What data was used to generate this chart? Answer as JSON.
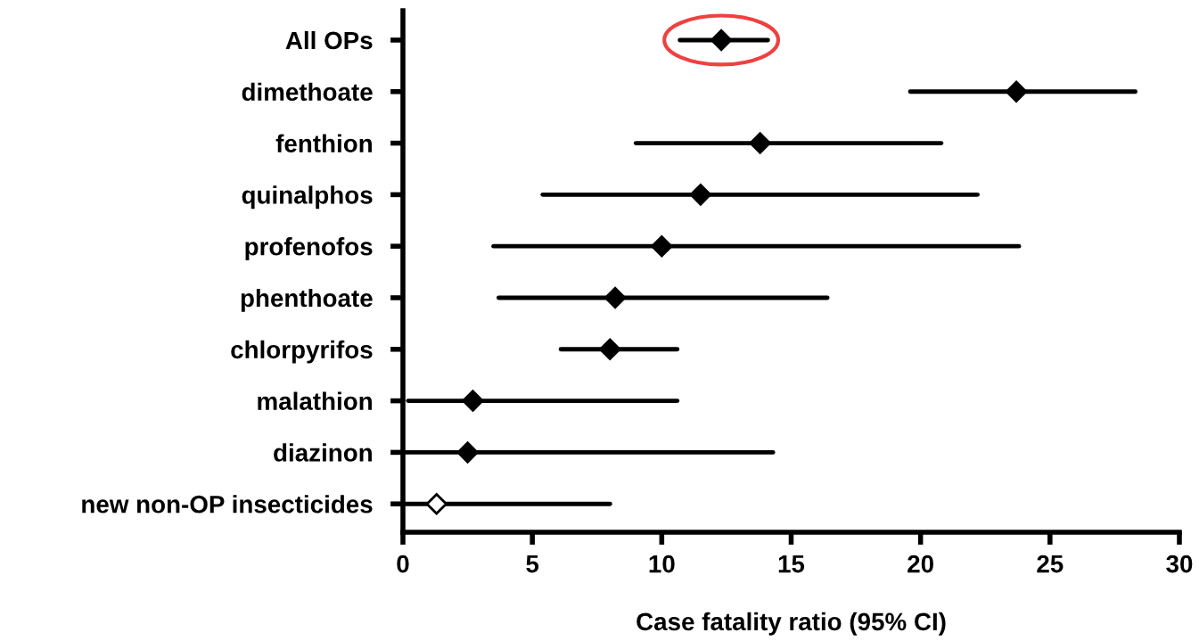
{
  "chart_data": {
    "type": "scatter",
    "orientation": "horizontal",
    "xlabel": "Case fatality ratio (95% CI)",
    "categories": [
      "All OPs",
      "dimethoate",
      "fenthion",
      "quinalphos",
      "profenofos",
      "phenthoate",
      "chlorpyrifos",
      "malathion",
      "diazinon",
      "new non-OP insecticides"
    ],
    "series": [
      {
        "color": "#000000",
        "values": [
          12.3,
          23.7,
          13.8,
          11.5,
          10.0,
          8.2,
          8.0,
          2.7,
          2.5,
          null
        ],
        "errors": [
          [
            10.7,
            14.1
          ],
          [
            19.6,
            28.3
          ],
          [
            9.0,
            20.8
          ],
          [
            5.4,
            22.2
          ],
          [
            3.5,
            23.8
          ],
          [
            3.7,
            16.4
          ],
          [
            6.1,
            10.6
          ],
          [
            0.2,
            10.6
          ],
          [
            0,
            14.3
          ],
          null
        ]
      },
      {
        "color": "#ffffff",
        "values": [
          null,
          null,
          null,
          null,
          null,
          null,
          null,
          null,
          null,
          1.3
        ],
        "errors": [
          null,
          null,
          null,
          null,
          null,
          null,
          null,
          null,
          null,
          [
            0,
            8.0
          ]
        ]
      }
    ],
    "xlim": [
      0,
      30
    ],
    "xticks": [
      0,
      5,
      10,
      15,
      20,
      25,
      30
    ],
    "marker": "diamond",
    "grid": false,
    "legend": false
  }
}
